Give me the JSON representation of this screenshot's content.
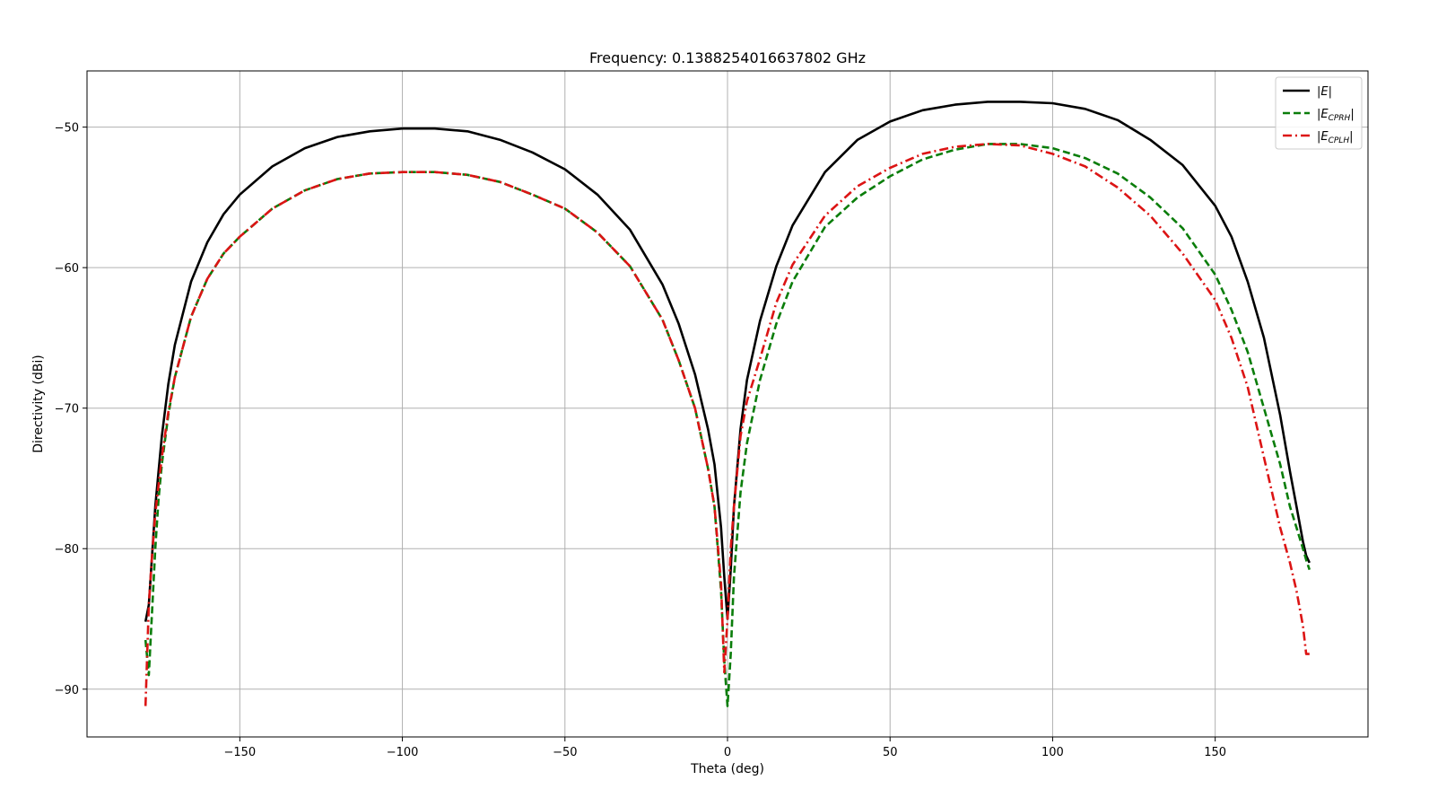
{
  "chart_data": {
    "type": "line",
    "title": "Frequency: 0.1388254016637802 GHz",
    "xlabel": "Theta (deg)",
    "ylabel": "Directivity (dBi)",
    "xlim": [
      -197,
      197
    ],
    "ylim": [
      -93.4,
      -46.0
    ],
    "xticks": [
      -150,
      -100,
      -50,
      0,
      50,
      100,
      150
    ],
    "yticks": [
      -50,
      -60,
      -70,
      -80,
      -90
    ],
    "xtick_labels": [
      "−150",
      "−100",
      "−50",
      "0",
      "50",
      "100",
      "150"
    ],
    "ytick_labels": [
      "−50",
      "−60",
      "−70",
      "−80",
      "−90"
    ],
    "grid": true,
    "legend_position": "top-right",
    "series": [
      {
        "name": "|E|",
        "legend_base": "|E",
        "legend_sub": "",
        "color": "#000000",
        "style": "solid",
        "x": [
          -179,
          -178,
          -177,
          -176,
          -174,
          -172,
          -170,
          -165,
          -160,
          -155,
          -150,
          -140,
          -130,
          -120,
          -110,
          -100,
          -90,
          -80,
          -70,
          -60,
          -50,
          -40,
          -30,
          -20,
          -15,
          -10,
          -6,
          -4,
          -2,
          -1,
          0,
          1,
          2,
          4,
          6,
          10,
          15,
          20,
          30,
          40,
          50,
          60,
          70,
          80,
          90,
          100,
          110,
          120,
          130,
          140,
          150,
          155,
          160,
          165,
          170,
          173,
          175,
          177,
          178,
          179
        ],
        "y": [
          -85.2,
          -84.0,
          -80.5,
          -77.0,
          -72.0,
          -68.3,
          -65.5,
          -61.0,
          -58.2,
          -56.2,
          -54.8,
          -52.8,
          -51.5,
          -50.7,
          -50.3,
          -50.1,
          -50.1,
          -50.3,
          -50.9,
          -51.8,
          -53.0,
          -54.8,
          -57.3,
          -61.2,
          -64.0,
          -67.6,
          -71.5,
          -74.0,
          -78.5,
          -82.0,
          -85.0,
          -81.5,
          -77.0,
          -71.5,
          -68.0,
          -63.8,
          -59.9,
          -57.0,
          -53.2,
          -50.9,
          -49.6,
          -48.8,
          -48.4,
          -48.2,
          -48.2,
          -48.3,
          -48.7,
          -49.5,
          -50.9,
          -52.7,
          -55.6,
          -57.8,
          -61.0,
          -65.0,
          -70.5,
          -74.5,
          -77.0,
          -79.5,
          -80.5,
          -81.0
        ]
      },
      {
        "name": "|E_CPRH|",
        "legend_base": "|E",
        "legend_sub": "CPRH",
        "color": "#0a7d0a",
        "style": "dashed",
        "x": [
          -179,
          -178,
          -177,
          -176,
          -175,
          -174,
          -172,
          -170,
          -165,
          -160,
          -155,
          -150,
          -140,
          -130,
          -120,
          -110,
          -100,
          -90,
          -80,
          -70,
          -60,
          -50,
          -40,
          -30,
          -20,
          -15,
          -10,
          -6,
          -4,
          -2,
          -1,
          0,
          1,
          2,
          4,
          6,
          10,
          15,
          20,
          30,
          40,
          50,
          60,
          70,
          80,
          90,
          100,
          110,
          120,
          130,
          140,
          150,
          155,
          160,
          165,
          170,
          173,
          175,
          177,
          178,
          179
        ],
        "y": [
          -86.5,
          -89.0,
          -84.5,
          -80.0,
          -76.5,
          -74.0,
          -70.5,
          -67.8,
          -63.5,
          -60.8,
          -59.0,
          -57.8,
          -55.8,
          -54.5,
          -53.7,
          -53.3,
          -53.2,
          -53.2,
          -53.4,
          -53.9,
          -54.8,
          -55.8,
          -57.5,
          -59.9,
          -63.7,
          -66.6,
          -70.0,
          -74.3,
          -77.0,
          -83.0,
          -88.0,
          -91.2,
          -87.5,
          -82.0,
          -76.0,
          -72.5,
          -68.0,
          -64.0,
          -61.0,
          -57.1,
          -55.0,
          -53.5,
          -52.3,
          -51.6,
          -51.2,
          -51.2,
          -51.5,
          -52.2,
          -53.3,
          -55.0,
          -57.2,
          -60.5,
          -63.0,
          -66.0,
          -70.0,
          -74.0,
          -77.0,
          -78.5,
          -80.0,
          -80.8,
          -81.5
        ]
      },
      {
        "name": "|E_CPLH|",
        "legend_base": "|E",
        "legend_sub": "CPLH",
        "color": "#dc1414",
        "style": "dashdot",
        "x": [
          -179,
          -178,
          -177,
          -176,
          -175,
          -174,
          -172,
          -170,
          -165,
          -160,
          -155,
          -150,
          -140,
          -130,
          -120,
          -110,
          -100,
          -90,
          -80,
          -70,
          -60,
          -50,
          -40,
          -30,
          -20,
          -15,
          -10,
          -6,
          -4,
          -2,
          -1,
          0,
          1,
          2,
          4,
          6,
          10,
          15,
          20,
          30,
          40,
          50,
          60,
          70,
          80,
          90,
          100,
          110,
          120,
          130,
          140,
          150,
          155,
          160,
          165,
          170,
          173,
          175,
          177,
          178,
          179
        ],
        "y": [
          -91.2,
          -84.0,
          -80.5,
          -77.5,
          -75.5,
          -73.5,
          -70.3,
          -67.8,
          -63.5,
          -60.8,
          -59.0,
          -57.8,
          -55.8,
          -54.5,
          -53.7,
          -53.3,
          -53.2,
          -53.2,
          -53.4,
          -53.9,
          -54.8,
          -55.8,
          -57.5,
          -59.9,
          -63.7,
          -66.6,
          -70.0,
          -74.3,
          -77.0,
          -82.5,
          -88.8,
          -85.0,
          -80.0,
          -77.0,
          -72.0,
          -69.5,
          -66.5,
          -62.5,
          -59.8,
          -56.3,
          -54.2,
          -52.9,
          -51.9,
          -51.4,
          -51.2,
          -51.3,
          -51.9,
          -52.8,
          -54.3,
          -56.3,
          -59.0,
          -62.3,
          -65.0,
          -68.5,
          -73.5,
          -78.5,
          -81.0,
          -83.0,
          -85.5,
          -87.5,
          -87.5
        ]
      }
    ]
  }
}
